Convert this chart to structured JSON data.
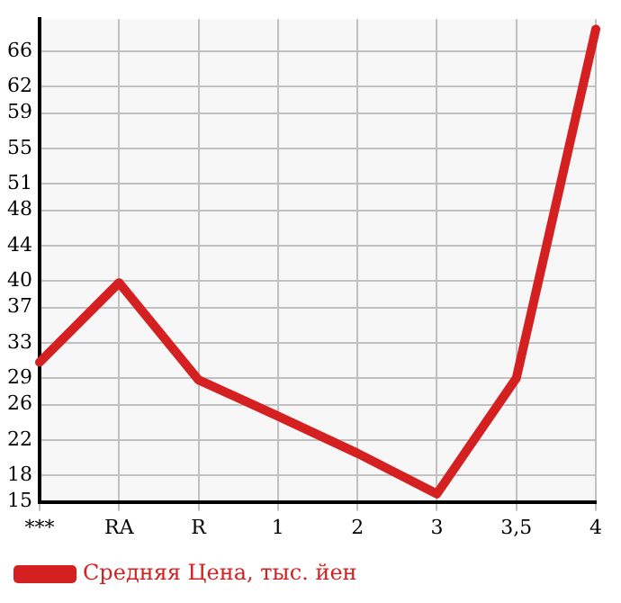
{
  "chart_data": {
    "type": "line",
    "categories": [
      "***",
      "RA",
      "R",
      "1",
      "2",
      "3",
      "3,5",
      "4"
    ],
    "series": [
      {
        "name": "Средняя Цена, тыс. йен",
        "color": "#d42020",
        "values": [
          30.8,
          39.8,
          28.8,
          24.7,
          20.5,
          15.9,
          29.0,
          68.5
        ]
      }
    ],
    "ylim": [
      15,
      69.64
    ],
    "yticks": [
      15,
      18,
      22,
      26,
      29,
      33,
      37,
      40,
      44,
      48,
      51,
      55,
      59,
      62,
      66
    ],
    "grid": true,
    "legend": "bottom",
    "marker": "none",
    "line_style": "solid"
  }
}
